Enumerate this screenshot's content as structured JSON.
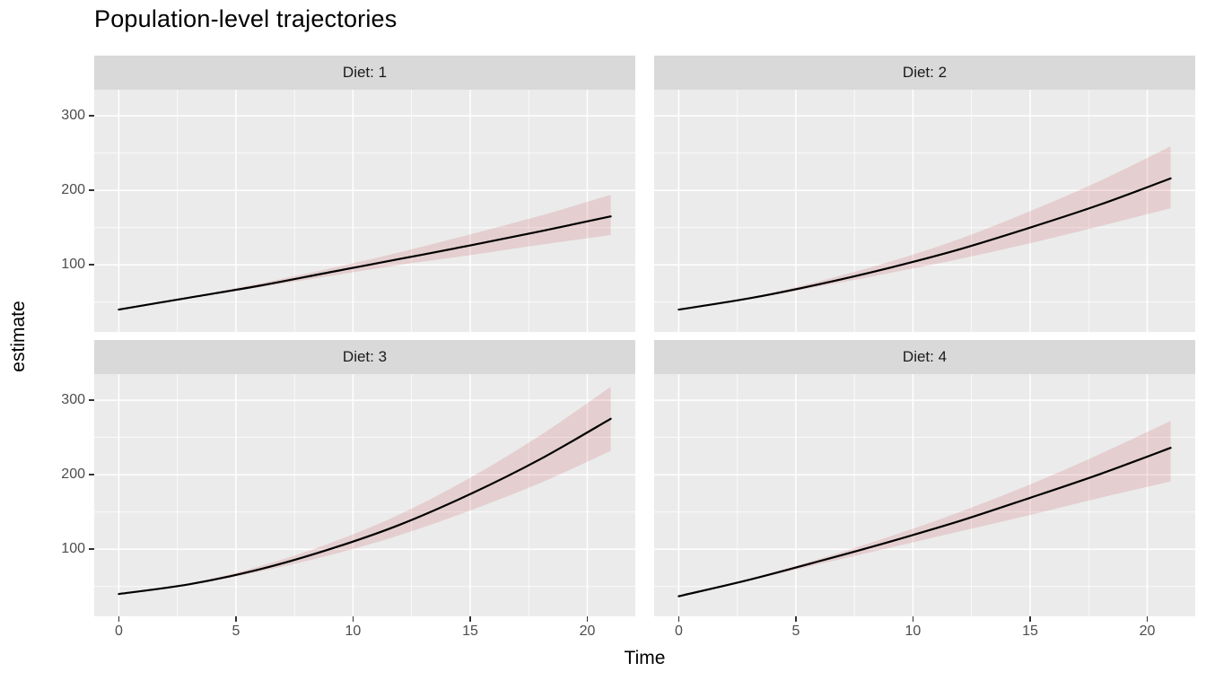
{
  "title": "Population-level trajectories",
  "chart_data": {
    "type": "line",
    "title": "Population-level trajectories",
    "xlabel": "Time",
    "ylabel": "estimate",
    "legend": "none",
    "grid": true,
    "xlim": [
      -1.05,
      22.05
    ],
    "ylim": [
      10,
      335
    ],
    "x_ticks": [
      0,
      5,
      10,
      15,
      20
    ],
    "x_minor_ticks": [
      2.5,
      7.5,
      12.5,
      17.5
    ],
    "y_ticks": [
      100,
      200,
      300
    ],
    "y_minor_ticks": [
      50,
      150,
      250
    ],
    "facets": [
      {
        "label": "Diet: 1",
        "x": [
          0,
          3,
          6,
          9,
          12,
          15,
          18,
          21
        ],
        "mean": [
          40,
          56,
          72,
          90,
          108,
          126,
          145,
          165
        ],
        "lower": [
          40,
          55,
          70,
          85,
          100,
          113,
          127,
          140
        ],
        "upper": [
          41,
          57,
          75,
          95,
          117,
          141,
          166,
          194
        ]
      },
      {
        "label": "Diet: 2",
        "x": [
          0,
          3,
          6,
          9,
          12,
          15,
          18,
          21
        ],
        "mean": [
          40,
          55,
          74,
          96,
          121,
          150,
          181,
          216
        ],
        "lower": [
          40,
          54,
          71,
          89,
          108,
          129,
          152,
          176
        ],
        "upper": [
          41,
          56,
          78,
          104,
          135,
          172,
          213,
          259
        ]
      },
      {
        "label": "Diet: 3",
        "x": [
          0,
          3,
          6,
          9,
          12,
          15,
          18,
          21
        ],
        "mean": [
          40,
          53,
          73,
          100,
          133,
          174,
          221,
          275
        ],
        "lower": [
          40,
          52,
          70,
          92,
          119,
          152,
          189,
          232
        ],
        "upper": [
          41,
          54,
          77,
          108,
          147,
          196,
          253,
          318
        ]
      },
      {
        "label": "Diet: 4",
        "x": [
          0,
          3,
          6,
          9,
          12,
          15,
          18,
          21
        ],
        "mean": [
          37,
          59,
          84,
          110,
          138,
          169,
          201,
          236
        ],
        "lower": [
          37,
          58,
          80,
          102,
          124,
          146,
          169,
          191
        ],
        "upper": [
          37,
          60,
          87,
          117,
          150,
          187,
          228,
          272
        ]
      }
    ]
  },
  "colors": {
    "panel_bg": "#EBEBEB",
    "strip_bg": "#D9D9D9",
    "grid": "#FFFFFF",
    "line": "#000000",
    "ribbon": "rgba(204,85,88,0.19)",
    "tick_label": "#4D4D4D",
    "tick_mark": "#333333"
  }
}
